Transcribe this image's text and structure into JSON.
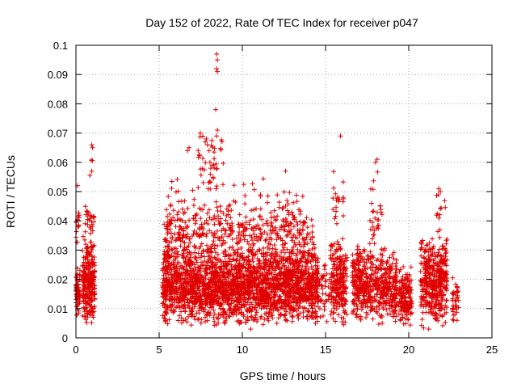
{
  "chart_data": {
    "type": "scatter",
    "title": "Day 152 of 2022, Rate Of TEC Index for receiver p047",
    "xlabel": "GPS time / hours",
    "ylabel": "ROTI / TECUs",
    "xlim": [
      0,
      25
    ],
    "ylim": [
      0,
      0.1
    ],
    "xticks": [
      0,
      5,
      10,
      15,
      20,
      25
    ],
    "yticks": [
      0,
      0.01,
      0.02,
      0.03,
      0.04,
      0.05,
      0.06,
      0.07,
      0.08,
      0.09,
      0.1
    ],
    "grid": true,
    "marker": "+",
    "color": "#e00000",
    "clusters": [
      {
        "x": [
          0.0,
          0.25
        ],
        "y": [
          0.005,
          0.025
        ],
        "n": 70
      },
      {
        "x": [
          0.0,
          0.2
        ],
        "y": [
          0.025,
          0.052
        ],
        "n": 14
      },
      {
        "x": [
          0.4,
          1.15
        ],
        "y": [
          0.004,
          0.035
        ],
        "n": 260
      },
      {
        "x": [
          0.5,
          1.1
        ],
        "y": [
          0.035,
          0.046
        ],
        "n": 25
      },
      {
        "x": [
          0.8,
          1.0
        ],
        "y": [
          0.049,
          0.067
        ],
        "n": 4
      },
      {
        "x": [
          5.2,
          14.6
        ],
        "y": [
          0.004,
          0.032
        ],
        "n": 2400
      },
      {
        "x": [
          5.3,
          14.3
        ],
        "y": [
          0.025,
          0.045
        ],
        "n": 420
      },
      {
        "x": [
          5.4,
          13.8
        ],
        "y": [
          0.035,
          0.057
        ],
        "n": 90
      },
      {
        "x": [
          7.3,
          8.9
        ],
        "y": [
          0.045,
          0.072
        ],
        "n": 45
      },
      {
        "x": [
          14.6,
          15.3
        ],
        "y": [
          0.004,
          0.03
        ],
        "n": 40
      },
      {
        "x": [
          15.3,
          16.3
        ],
        "y": [
          0.004,
          0.035
        ],
        "n": 230
      },
      {
        "x": [
          15.4,
          16.1
        ],
        "y": [
          0.035,
          0.06
        ],
        "n": 20
      },
      {
        "x": [
          16.6,
          19.3
        ],
        "y": [
          0.004,
          0.032
        ],
        "n": 540
      },
      {
        "x": [
          17.6,
          18.4
        ],
        "y": [
          0.03,
          0.06
        ],
        "n": 30
      },
      {
        "x": [
          19.4,
          20.2
        ],
        "y": [
          0.004,
          0.025
        ],
        "n": 150
      },
      {
        "x": [
          20.7,
          22.3
        ],
        "y": [
          0.003,
          0.035
        ],
        "n": 420
      },
      {
        "x": [
          21.6,
          22.2
        ],
        "y": [
          0.035,
          0.051
        ],
        "n": 12
      },
      {
        "x": [
          22.6,
          23.0
        ],
        "y": [
          0.005,
          0.022
        ],
        "n": 35
      }
    ],
    "points": [
      [
        0.95,
        0.066
      ],
      [
        1.0,
        0.065
      ],
      [
        8.45,
        0.097
      ],
      [
        8.5,
        0.095
      ],
      [
        8.45,
        0.092
      ],
      [
        8.5,
        0.091
      ],
      [
        8.4,
        0.078
      ],
      [
        8.5,
        0.071
      ],
      [
        8.45,
        0.069
      ],
      [
        7.9,
        0.066
      ],
      [
        8.0,
        0.064
      ],
      [
        6.8,
        0.065
      ],
      [
        6.7,
        0.064
      ],
      [
        15.9,
        0.069
      ],
      [
        12.6,
        0.057
      ],
      [
        18.1,
        0.061
      ],
      [
        18.0,
        0.06
      ],
      [
        21.8,
        0.051
      ],
      [
        21.9,
        0.05
      ],
      [
        0.1,
        0.052
      ],
      [
        22.9,
        0.006
      ],
      [
        22.7,
        0.006
      ],
      [
        10.5,
        0.003
      ],
      [
        21.2,
        0.003
      ]
    ]
  }
}
